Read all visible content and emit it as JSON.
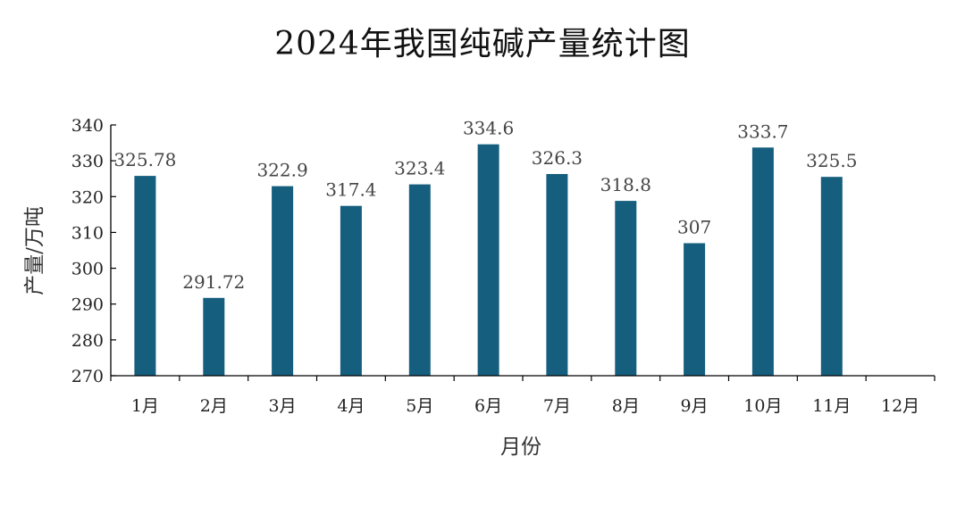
{
  "chart_data": {
    "type": "bar",
    "title": "2024年我国纯碱产量统计图",
    "xlabel": "月份",
    "ylabel": "产量/万吨",
    "categories": [
      "1月",
      "2月",
      "3月",
      "4月",
      "5月",
      "6月",
      "7月",
      "8月",
      "9月",
      "10月",
      "11月",
      "12月"
    ],
    "values": [
      325.78,
      291.72,
      322.9,
      317.4,
      323.4,
      334.6,
      326.3,
      318.8,
      307,
      333.7,
      325.5,
      null
    ],
    "data_labels": [
      "325.78",
      "291.72",
      "322.9",
      "317.4",
      "323.4",
      "334.6",
      "326.3",
      "318.8",
      "307",
      "333.7",
      "325.5",
      ""
    ],
    "ylim": [
      270,
      340
    ],
    "yticks": [
      270,
      280,
      290,
      300,
      310,
      320,
      330,
      340
    ],
    "grid": false,
    "legend": "none",
    "bar_color": "#165E7E"
  }
}
